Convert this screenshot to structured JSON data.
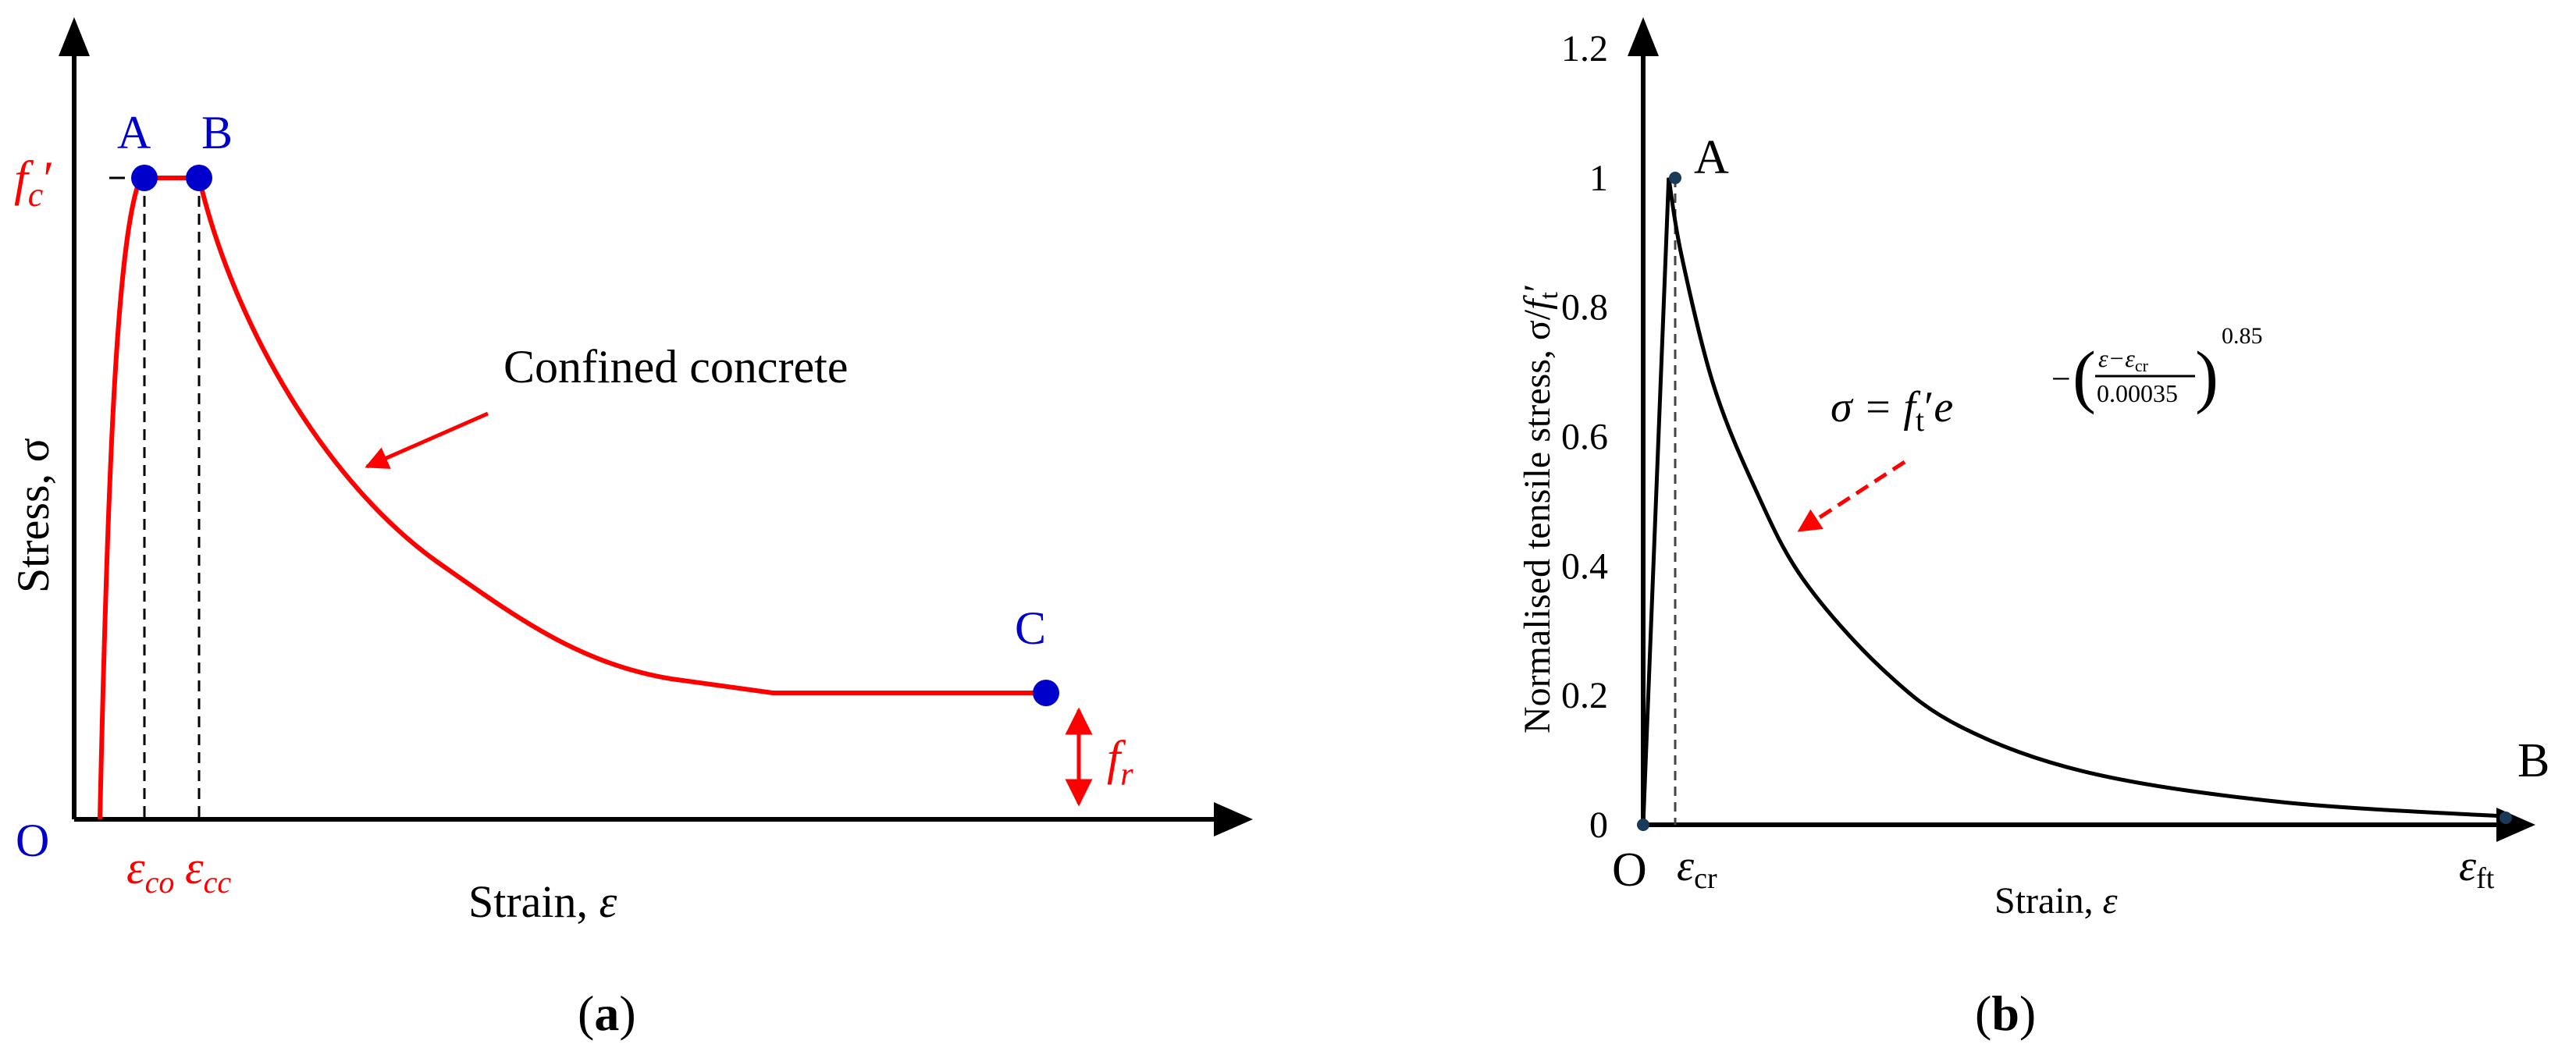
{
  "panel_a": {
    "caption": "(a)",
    "caption_open": "(",
    "caption_letter": "a",
    "caption_close": ")",
    "origin_label": "O",
    "y_label_text": "Stress,",
    "y_label_symbol": "σ",
    "x_label_text": "Strain,",
    "x_label_symbol": "ε",
    "point_labels": {
      "A": "A",
      "B": "B",
      "C": "C"
    },
    "fc_label": {
      "base": "f",
      "sub": "c",
      "prime": "′"
    },
    "fr_label": {
      "base": "f",
      "sub": "r"
    },
    "eps_co_label": {
      "base": "ε",
      "sub": "co"
    },
    "eps_cc_label": {
      "base": "ε",
      "sub": "cc"
    },
    "annotation": "Confined concrete",
    "colors": {
      "curve": "#ff0000",
      "points": "#0000cc",
      "axes": "#000000"
    }
  },
  "panel_b": {
    "caption": "(b)",
    "caption_open": "(",
    "caption_letter": "b",
    "caption_close": ")",
    "origin_label": "O",
    "y_label_text": "Normalised tensile stress, σ/",
    "y_label_f": "f",
    "y_label_sub": "t",
    "y_label_prime": "′",
    "x_label_text": "Strain,",
    "x_label_symbol": "ε",
    "point_labels": {
      "A": "A",
      "B": "B"
    },
    "eps_cr_label": {
      "base": "ε",
      "sub": "cr"
    },
    "eps_ft_label": {
      "base": "ε",
      "sub": "ft"
    },
    "equation": {
      "lhs": "σ = f",
      "f_sub": "t",
      "prime": "′",
      "e": "e",
      "minus": "−",
      "numerator": "ε−ε",
      "numerator_sub": "cr",
      "denominator": "0.00035",
      "exponent": "0.85"
    },
    "colors": {
      "curve": "#000000",
      "arrow": "#ff0000",
      "points": "#1a3a5a"
    }
  },
  "chart_data": {
    "type": "line",
    "title": "",
    "xlabel": "Strain, ε",
    "ylabel": "Normalised tensile stress, σ/f′t",
    "ylim": [
      0,
      1.2
    ],
    "y_ticks": [
      "0",
      "0.2",
      "0.4",
      "0.6",
      "0.8",
      "1",
      "1.2"
    ],
    "grid": false,
    "equation_text": "σ = f′t e^-((ε−εcr)/0.00035)^0.85",
    "series": [
      {
        "x": [
          0,
          8e-05,
          0.00012,
          0.00022,
          0.00035,
          0.0005,
          0.00075,
          0.001,
          0.0014,
          0.002,
          0.0027
        ],
        "values": [
          0,
          1.0,
          0.88,
          0.68,
          0.52,
          0.38,
          0.24,
          0.15,
          0.08,
          0.035,
          0.013
        ]
      }
    ]
  }
}
